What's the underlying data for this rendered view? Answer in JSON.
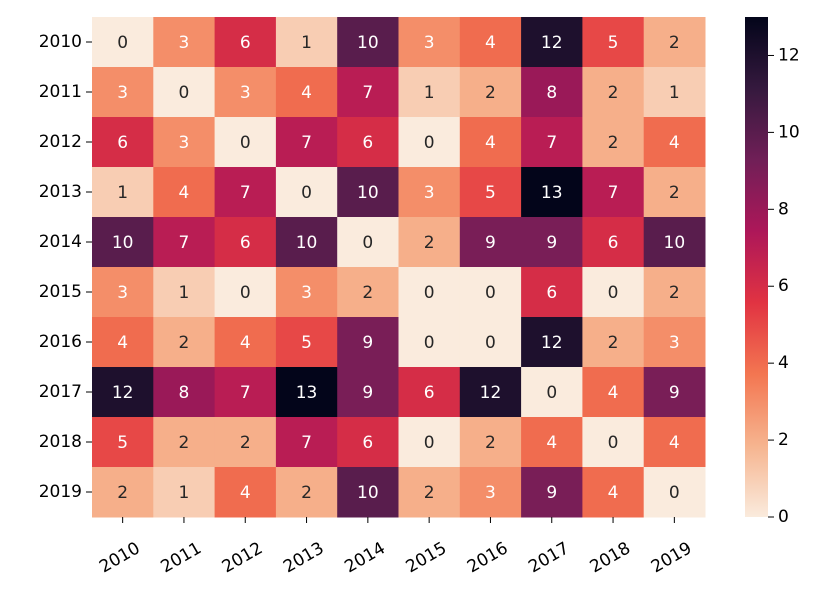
{
  "chart_data": {
    "type": "heatmap",
    "x_categories": [
      "2010",
      "2011",
      "2012",
      "2013",
      "2014",
      "2015",
      "2016",
      "2017",
      "2018",
      "2019"
    ],
    "y_categories": [
      "2010",
      "2011",
      "2012",
      "2013",
      "2014",
      "2015",
      "2016",
      "2017",
      "2018",
      "2019"
    ],
    "z": [
      [
        0,
        3,
        6,
        1,
        10,
        3,
        4,
        12,
        5,
        2
      ],
      [
        3,
        0,
        3,
        4,
        7,
        1,
        2,
        8,
        2,
        1
      ],
      [
        6,
        3,
        0,
        7,
        6,
        0,
        4,
        7,
        2,
        4
      ],
      [
        1,
        4,
        7,
        0,
        10,
        3,
        5,
        13,
        7,
        2
      ],
      [
        10,
        7,
        6,
        10,
        0,
        2,
        9,
        9,
        6,
        10
      ],
      [
        3,
        1,
        0,
        3,
        2,
        0,
        0,
        6,
        0,
        2
      ],
      [
        4,
        2,
        4,
        5,
        9,
        0,
        0,
        12,
        2,
        3
      ],
      [
        12,
        8,
        7,
        13,
        9,
        6,
        12,
        0,
        4,
        9
      ],
      [
        5,
        2,
        2,
        7,
        6,
        0,
        2,
        4,
        0,
        4
      ],
      [
        2,
        1,
        4,
        2,
        10,
        2,
        3,
        9,
        4,
        0
      ]
    ],
    "zlim": [
      0,
      13
    ],
    "colorbar_ticks": [
      0,
      2,
      4,
      6,
      8,
      10,
      12
    ],
    "colorscale": [
      "#faebdd",
      "#f6b48f",
      "#f37651",
      "#e13342",
      "#ad1759",
      "#701f57",
      "#35193e",
      "#03051a"
    ],
    "annotate": true
  }
}
